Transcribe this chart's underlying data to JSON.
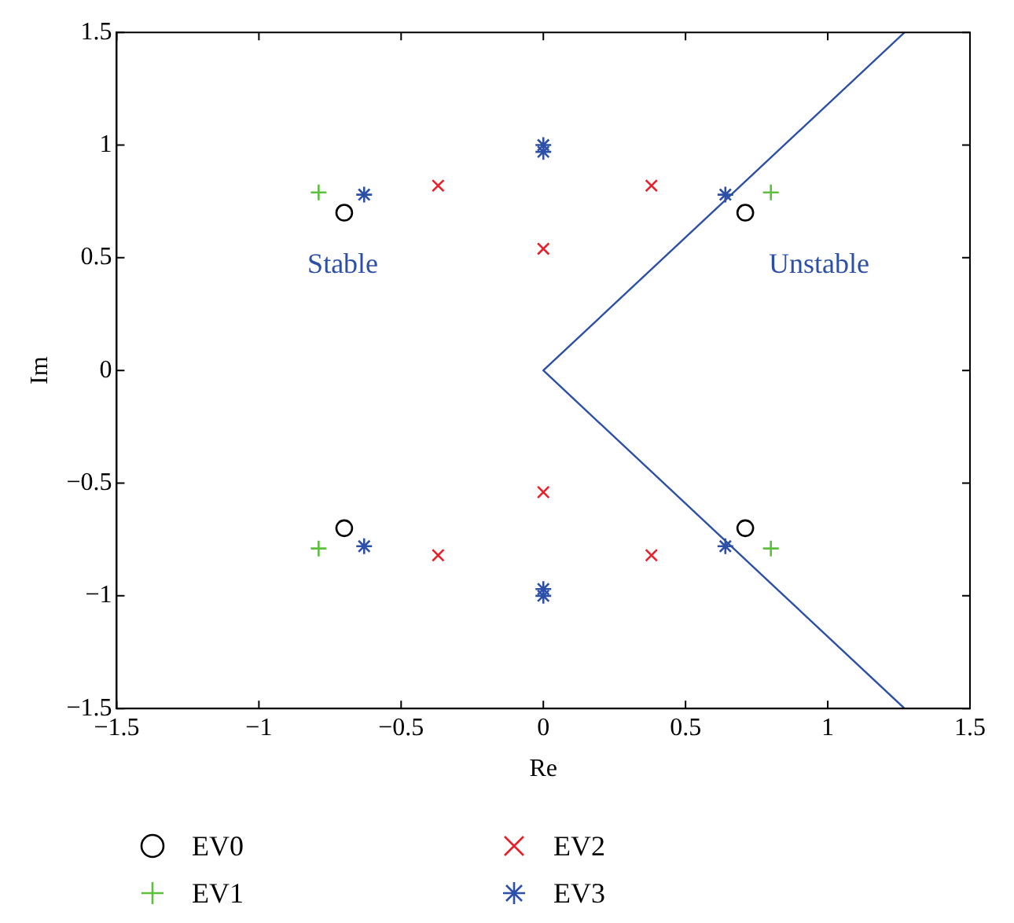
{
  "chart_data": {
    "type": "scatter",
    "xlabel": "Re",
    "ylabel": "Im",
    "xlim": [
      -1.5,
      1.5
    ],
    "ylim": [
      -1.5,
      1.5
    ],
    "xticks": [
      {
        "value": -1.5,
        "label": "−1.5"
      },
      {
        "value": -1,
        "label": "−1"
      },
      {
        "value": -0.5,
        "label": "−0.5"
      },
      0,
      0.5,
      1,
      1.5
    ],
    "yticks": [
      {
        "value": -1.5,
        "label": "−1.5"
      },
      {
        "value": -1,
        "label": "−1"
      },
      {
        "value": -0.5,
        "label": "−0.5"
      },
      0,
      0.5,
      1,
      1.5
    ],
    "grid": false,
    "legend": "bottom",
    "series": [
      {
        "name": "EV0",
        "color": "#000000",
        "marker": "circle",
        "x": [
          -0.7,
          0.71,
          -0.7,
          0.71
        ],
        "values": [
          0.7,
          0.7,
          -0.7,
          -0.7
        ]
      },
      {
        "name": "EV1",
        "color": "#5cc03c",
        "marker": "cross",
        "x": [
          -0.79,
          0.8,
          -0.79,
          0.8
        ],
        "values": [
          0.79,
          0.79,
          -0.79,
          -0.79
        ]
      },
      {
        "name": "EV2",
        "color": "#e8202a",
        "marker": "x",
        "x": [
          -0.37,
          0.38,
          0,
          -0.37,
          0.38,
          0
        ],
        "values": [
          0.82,
          0.82,
          0.54,
          -0.82,
          -0.82,
          -0.54
        ]
      },
      {
        "name": "EV3",
        "color": "#2c4fa8",
        "x": [
          -0.63,
          0.64,
          0,
          0,
          -0.63,
          0.64,
          0,
          0
        ],
        "values": [
          0.78,
          0.78,
          0.97,
          1.0,
          -0.78,
          -0.78,
          -0.97,
          -1.0
        ]
      },
      {
        "type": "line",
        "color": "#2c4fa8",
        "marker": "none",
        "x": [
          1.27,
          0,
          1.27
        ],
        "values": [
          1.5,
          0,
          -1.5
        ]
      }
    ],
    "annotations": [
      "Stable",
      "Unstable"
    ]
  }
}
